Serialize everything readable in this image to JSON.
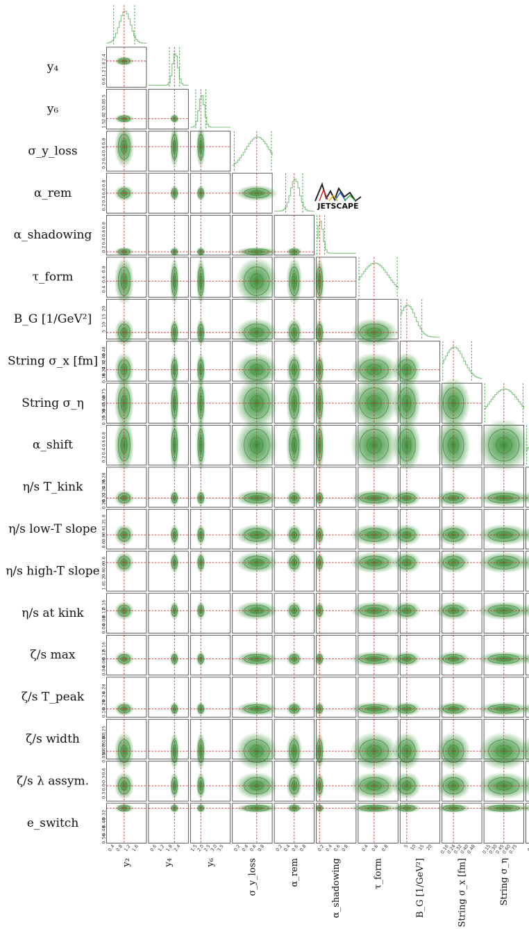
{
  "chart_data": {
    "type": "corner",
    "colors": {
      "density": "#2e8b2e",
      "truth": "#d62728",
      "marginal": "#7fc27f",
      "bounds": "#2ca02c"
    },
    "logo_text": "JETSCAPE",
    "parameters": [
      {
        "key": "y2",
        "row_label": "",
        "col_label": "y₂",
        "ticks": [
          "0.4",
          "0.8",
          "1.2",
          "1.6"
        ],
        "range": [
          0.2,
          1.9
        ],
        "truth": 0.95,
        "width": 0.28
      },
      {
        "key": "y4",
        "row_label": "y₄",
        "col_label": "y₄",
        "ticks": [
          "0.6",
          "1.2",
          "1.8",
          "2.4"
        ],
        "range": [
          0.3,
          2.6
        ],
        "truth": 1.8,
        "width": 0.12
      },
      {
        "key": "y6",
        "row_label": "y₆",
        "col_label": "y₆",
        "ticks": [
          "1.5",
          "2.0",
          "2.5",
          "3.0",
          "3.5"
        ],
        "range": [
          1.4,
          3.7
        ],
        "truth": 2.0,
        "width": 0.14
      },
      {
        "key": "sigma_yloss",
        "row_label": "σ_y_loss",
        "col_label": "σ_y_loss",
        "ticks": [
          "0.2",
          "0.4",
          "0.6",
          "0.8"
        ],
        "range": [
          0.1,
          0.95
        ],
        "truth": 0.62,
        "width": 0.3
      },
      {
        "key": "alpha_rem",
        "row_label": "α_rem",
        "col_label": "α_rem",
        "ticks": [
          "0.2",
          "0.4",
          "0.6",
          "0.8"
        ],
        "range": [
          0.05,
          0.95
        ],
        "truth": 0.5,
        "width": 0.12
      },
      {
        "key": "alpha_shadowing",
        "row_label": "α_shadowing",
        "col_label": "α_shadowing",
        "ticks": [
          "0.2",
          "0.4",
          "0.6",
          "0.8"
        ],
        "range": [
          0.0,
          0.95
        ],
        "truth": 0.08,
        "width": 0.06
      },
      {
        "key": "tau_form",
        "row_label": "τ_form",
        "col_label": "τ_form",
        "ticks": [
          "0.4",
          "0.6",
          "0.8"
        ],
        "range": [
          0.2,
          0.95
        ],
        "truth": 0.5,
        "width": 0.3
      },
      {
        "key": "B_G",
        "row_label": "B_G [1/GeV²]",
        "col_label": "B_G [1/GeV²]",
        "ticks": [
          "5",
          "10",
          "15",
          "20"
        ],
        "range": [
          2,
          23
        ],
        "truth": 5.5,
        "width": 5
      },
      {
        "key": "string_sigma_x",
        "row_label": "String σ_x [fm]",
        "col_label": "String σ_x [fm]",
        "ticks": [
          "0.16",
          "0.24",
          "0.32",
          "0.40",
          "0.48"
        ],
        "range": [
          0.1,
          0.52
        ],
        "truth": 0.22,
        "width": 0.12
      },
      {
        "key": "string_sigma_eta",
        "row_label": "String σ_η",
        "col_label": "String σ_η",
        "ticks": [
          "0.15",
          "0.30",
          "0.45",
          "0.60",
          "0.75"
        ],
        "range": [
          0.1,
          0.8
        ],
        "truth": 0.45,
        "width": 0.3
      },
      {
        "key": "alpha_shift",
        "row_label": "α_shift",
        "col_label": "",
        "ticks": [
          "0.2",
          "0.4",
          "0.6",
          "0.8"
        ],
        "range": [
          0.05,
          0.95
        ],
        "truth": null,
        "width": 0.4
      },
      {
        "key": "eta_s_T_kink",
        "row_label": "η/s T_kink",
        "col_label": "",
        "ticks": [
          "0.20",
          "0.22",
          "0.24",
          "0.26",
          "0.28"
        ],
        "range": [
          0.18,
          0.29
        ],
        "truth": 0.205,
        "width": 0.015
      },
      {
        "key": "eta_s_low_T_slope",
        "row_label": "η/s low-T slope",
        "col_label": "",
        "ticks": [
          "0.6",
          "0.0",
          "-0.6",
          "-1.2",
          "-1.8"
        ],
        "range": [
          -2.0,
          0.8
        ],
        "truth": -1.0,
        "width": 0.5
      },
      {
        "key": "eta_s_high_T_slope",
        "row_label": "η/s high-T slope",
        "col_label": "",
        "ticks": [
          "1.8",
          "1.2",
          "0.6",
          "0.0",
          "-0.6"
        ],
        "range": [
          -0.8,
          2.0
        ],
        "truth": 1.2,
        "width": 0.5
      },
      {
        "key": "eta_s_at_kink",
        "row_label": "η/s at kink",
        "col_label": "",
        "ticks": [
          "0.04",
          "0.08",
          "0.12",
          "0.16"
        ],
        "range": [
          0.02,
          0.18
        ],
        "truth": 0.11,
        "width": 0.025
      },
      {
        "key": "zeta_s_max",
        "row_label": "ζ/s max",
        "col_label": "",
        "ticks": [
          "0.04",
          "0.08",
          "0.12",
          "0.16"
        ],
        "range": [
          0.02,
          0.18
        ],
        "truth": 0.085,
        "width": 0.02
      },
      {
        "key": "zeta_s_T_peak",
        "row_label": "ζ/s T_peak",
        "col_label": "",
        "ticks": [
          "0.16",
          "0.20",
          "0.24",
          "0.28"
        ],
        "range": [
          0.13,
          0.3
        ],
        "truth": 0.165,
        "width": 0.02
      },
      {
        "key": "zeta_s_width",
        "row_label": "ζ/s width",
        "col_label": "",
        "ticks": [
          "0.050",
          "0.075",
          "0.100",
          "0.125"
        ],
        "range": [
          0.025,
          0.15
        ],
        "truth": 0.05,
        "width": 0.04
      },
      {
        "key": "zeta_s_lambda_assym",
        "row_label": "ζ/s λ assym.",
        "col_label": "",
        "ticks": [
          "0.3",
          "0.0",
          "-0.3",
          "-0.6"
        ],
        "range": [
          -0.8,
          0.5
        ],
        "truth": -0.3,
        "width": 0.3
      },
      {
        "key": "e_switch",
        "row_label": "e_switch",
        "col_label": "",
        "ticks": [
          "0.56",
          "0.48",
          "0.40",
          "0.32"
        ],
        "range": [
          0.28,
          0.6
        ],
        "truth": 0.56,
        "width": 0.02
      }
    ]
  }
}
